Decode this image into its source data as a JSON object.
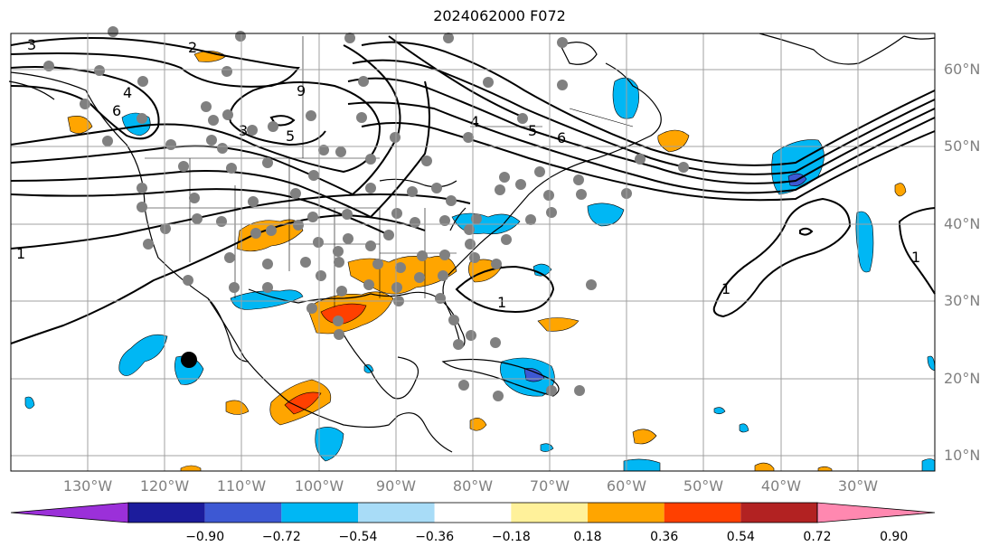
{
  "title": "2024062000 F072",
  "lat_labels": [
    "60°N",
    "50°N",
    "40°N",
    "30°N",
    "20°N",
    "10°N"
  ],
  "lon_labels": [
    "130°W",
    "120°W",
    "110°W",
    "100°W",
    "90°W",
    "80°W",
    "70°W",
    "60°W",
    "50°W",
    "40°W",
    "30°W"
  ],
  "contour_labels": [
    "3",
    "2",
    "4",
    "6",
    "3",
    "5",
    "9",
    "6",
    "5",
    "4",
    "1",
    "1",
    "1",
    "1"
  ],
  "colorbar": {
    "ticks": [
      "−0.90",
      "−0.72",
      "−0.54",
      "−0.36",
      "−0.18",
      "0.18",
      "0.36",
      "0.54",
      "0.72",
      "0.90"
    ],
    "colors": [
      "#9b30d9",
      "#1c1c9c",
      "#3d58d3",
      "#00b7f4",
      "#a8dcf7",
      "#ffffff",
      "#fff19a",
      "#ffa500",
      "#ff4000",
      "#b22222",
      "#ff88b0"
    ]
  },
  "colors": {
    "land_border": "#000000",
    "grid": "#a0a0a0",
    "stations": "#808080",
    "contours": "#000000"
  }
}
